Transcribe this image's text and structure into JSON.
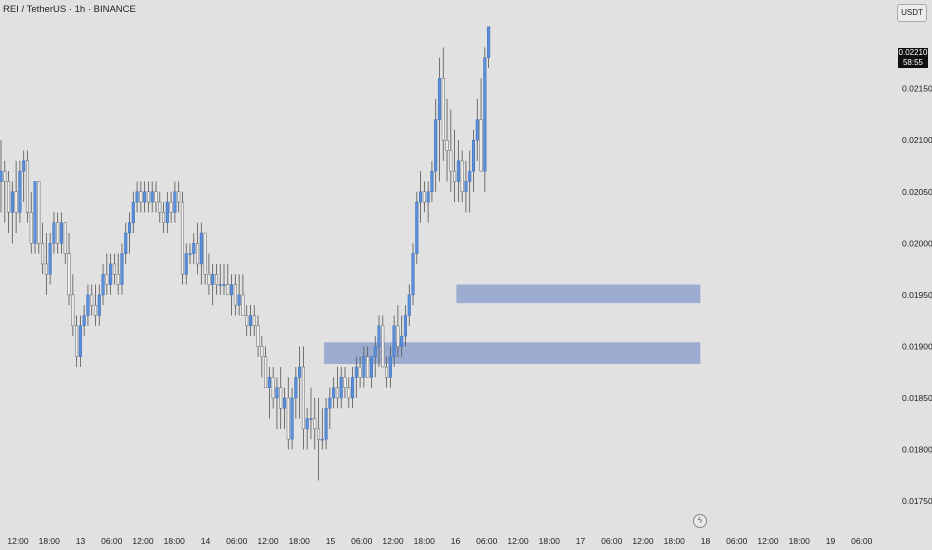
{
  "header": {
    "symbol_title": "REI / TetherUS · 1h · BINANCE",
    "currency_button": "USDT"
  },
  "price_tag": {
    "price": "0.02210",
    "countdown": "58:55"
  },
  "colors": {
    "background": "#e1e1e1",
    "up": "#5b8ed8",
    "down": "#ececec",
    "zone": "#8fa1cc",
    "text": "#222222"
  },
  "icons": {
    "alert": "lightning-icon"
  },
  "chart_data": {
    "type": "candlestick",
    "title": "REI / TetherUS · 1h · BINANCE",
    "y_ticks": [
      "0.02150",
      "0.02100",
      "0.02050",
      "0.02000",
      "0.01950",
      "0.01900",
      "0.01850",
      "0.01800",
      "0.01750"
    ],
    "x_ticks": [
      "12:00",
      "18:00",
      "13",
      "06:00",
      "12:00",
      "18:00",
      "14",
      "06:00",
      "12:00",
      "18:00",
      "15",
      "06:00",
      "12:00",
      "18:00",
      "16",
      "06:00",
      "12:00",
      "18:00",
      "17",
      "06:00",
      "12:00",
      "18:00",
      "18",
      "06:00",
      "12:00",
      "18:00",
      "19",
      "06:00"
    ],
    "ylim": [
      0.0172,
      0.02236
    ],
    "candles_ohlc": [
      [
        0.0206,
        0.021,
        0.0203,
        0.0207
      ],
      [
        0.0207,
        0.0208,
        0.0202,
        0.0206
      ],
      [
        0.0206,
        0.0207,
        0.0201,
        0.0203
      ],
      [
        0.0203,
        0.0206,
        0.02,
        0.0205
      ],
      [
        0.0205,
        0.0208,
        0.0201,
        0.0203
      ],
      [
        0.0203,
        0.0208,
        0.0202,
        0.0207
      ],
      [
        0.0207,
        0.0209,
        0.0204,
        0.0208
      ],
      [
        0.0208,
        0.0209,
        0.0202,
        0.0203
      ],
      [
        0.0203,
        0.0205,
        0.0199,
        0.02
      ],
      [
        0.02,
        0.0206,
        0.0199,
        0.0206
      ],
      [
        0.0206,
        0.0206,
        0.0199,
        0.02
      ],
      [
        0.02,
        0.0202,
        0.0197,
        0.0198
      ],
      [
        0.0198,
        0.0201,
        0.0195,
        0.0197
      ],
      [
        0.0197,
        0.0201,
        0.0196,
        0.02
      ],
      [
        0.02,
        0.0203,
        0.0199,
        0.0202
      ],
      [
        0.0202,
        0.0203,
        0.0199,
        0.02
      ],
      [
        0.02,
        0.0203,
        0.0199,
        0.0202
      ],
      [
        0.0202,
        0.0202,
        0.0198,
        0.0199
      ],
      [
        0.0199,
        0.0201,
        0.0194,
        0.0195
      ],
      [
        0.0195,
        0.0197,
        0.0191,
        0.0192
      ],
      [
        0.0192,
        0.0193,
        0.0188,
        0.0189
      ],
      [
        0.0189,
        0.0193,
        0.0188,
        0.0192
      ],
      [
        0.0192,
        0.0194,
        0.0191,
        0.0193
      ],
      [
        0.0193,
        0.0196,
        0.0192,
        0.0195
      ],
      [
        0.0195,
        0.0196,
        0.0193,
        0.0194
      ],
      [
        0.0194,
        0.0196,
        0.0192,
        0.0193
      ],
      [
        0.0193,
        0.0196,
        0.0192,
        0.0195
      ],
      [
        0.0195,
        0.0198,
        0.0194,
        0.0197
      ],
      [
        0.0197,
        0.0199,
        0.0195,
        0.0196
      ],
      [
        0.0196,
        0.0199,
        0.0195,
        0.0198
      ],
      [
        0.0198,
        0.0199,
        0.0196,
        0.0197
      ],
      [
        0.0197,
        0.0199,
        0.0195,
        0.0196
      ],
      [
        0.0196,
        0.02,
        0.0195,
        0.0199
      ],
      [
        0.0199,
        0.0202,
        0.0198,
        0.0201
      ],
      [
        0.0201,
        0.0203,
        0.0199,
        0.0202
      ],
      [
        0.0202,
        0.0205,
        0.0201,
        0.0204
      ],
      [
        0.0204,
        0.0206,
        0.0203,
        0.0205
      ],
      [
        0.0205,
        0.0206,
        0.0203,
        0.0204
      ],
      [
        0.0204,
        0.0206,
        0.0203,
        0.0205
      ],
      [
        0.0205,
        0.0206,
        0.0203,
        0.0204
      ],
      [
        0.0204,
        0.0206,
        0.0203,
        0.0205
      ],
      [
        0.0205,
        0.0206,
        0.0203,
        0.0204
      ],
      [
        0.0204,
        0.0205,
        0.0202,
        0.0203
      ],
      [
        0.0203,
        0.0204,
        0.0201,
        0.0202
      ],
      [
        0.0202,
        0.0205,
        0.0201,
        0.0204
      ],
      [
        0.0204,
        0.0205,
        0.0202,
        0.0203
      ],
      [
        0.0203,
        0.0206,
        0.0202,
        0.0205
      ],
      [
        0.0205,
        0.0206,
        0.0203,
        0.0204
      ],
      [
        0.0204,
        0.0205,
        0.0196,
        0.0197
      ],
      [
        0.0197,
        0.02,
        0.0196,
        0.0199
      ],
      [
        0.0199,
        0.02,
        0.0198,
        0.0199
      ],
      [
        0.0199,
        0.0201,
        0.0198,
        0.02
      ],
      [
        0.02,
        0.0202,
        0.0197,
        0.0198
      ],
      [
        0.0198,
        0.0202,
        0.0196,
        0.0201
      ],
      [
        0.0201,
        0.0201,
        0.0196,
        0.0197
      ],
      [
        0.0197,
        0.0199,
        0.0195,
        0.0196
      ],
      [
        0.0196,
        0.0198,
        0.0194,
        0.0197
      ],
      [
        0.0197,
        0.0198,
        0.0195,
        0.0196
      ],
      [
        0.0196,
        0.0198,
        0.0195,
        0.0196
      ],
      [
        0.0196,
        0.0198,
        0.0195,
        0.0196
      ],
      [
        0.0196,
        0.0198,
        0.0195,
        0.0195
      ],
      [
        0.0195,
        0.0197,
        0.0193,
        0.0196
      ],
      [
        0.0196,
        0.0197,
        0.0193,
        0.0194
      ],
      [
        0.0194,
        0.0197,
        0.0193,
        0.0195
      ],
      [
        0.0195,
        0.0197,
        0.0193,
        0.0193
      ],
      [
        0.0193,
        0.0194,
        0.0191,
        0.0192
      ],
      [
        0.0192,
        0.0194,
        0.0191,
        0.0193
      ],
      [
        0.0193,
        0.0194,
        0.0191,
        0.0192
      ],
      [
        0.0192,
        0.0193,
        0.0189,
        0.019
      ],
      [
        0.019,
        0.0191,
        0.0187,
        0.0189
      ],
      [
        0.0189,
        0.019,
        0.0186,
        0.0186
      ],
      [
        0.0186,
        0.0188,
        0.0183,
        0.0187
      ],
      [
        0.0187,
        0.0188,
        0.0184,
        0.0185
      ],
      [
        0.0185,
        0.0187,
        0.0182,
        0.0186
      ],
      [
        0.0186,
        0.0188,
        0.0182,
        0.0184
      ],
      [
        0.0184,
        0.0186,
        0.0182,
        0.0185
      ],
      [
        0.0185,
        0.0187,
        0.018,
        0.0181
      ],
      [
        0.0181,
        0.0186,
        0.018,
        0.0185
      ],
      [
        0.0185,
        0.0188,
        0.0183,
        0.0187
      ],
      [
        0.0187,
        0.019,
        0.0183,
        0.0188
      ],
      [
        0.0188,
        0.019,
        0.018,
        0.0182
      ],
      [
        0.0182,
        0.0184,
        0.018,
        0.0183
      ],
      [
        0.0183,
        0.0186,
        0.0181,
        0.0183
      ],
      [
        0.0183,
        0.0185,
        0.018,
        0.0182
      ],
      [
        0.0182,
        0.0185,
        0.0177,
        0.0181
      ],
      [
        0.0181,
        0.0184,
        0.018,
        0.0181
      ],
      [
        0.0181,
        0.0185,
        0.018,
        0.0184
      ],
      [
        0.0184,
        0.0186,
        0.0182,
        0.0185
      ],
      [
        0.0185,
        0.0187,
        0.0184,
        0.0186
      ],
      [
        0.0186,
        0.0188,
        0.0184,
        0.0185
      ],
      [
        0.0185,
        0.0188,
        0.0184,
        0.0187
      ],
      [
        0.0187,
        0.0188,
        0.0185,
        0.0186
      ],
      [
        0.0186,
        0.0187,
        0.0184,
        0.0185
      ],
      [
        0.0185,
        0.0188,
        0.0184,
        0.0187
      ],
      [
        0.0187,
        0.0189,
        0.0185,
        0.0188
      ],
      [
        0.0188,
        0.0189,
        0.0186,
        0.0187
      ],
      [
        0.0187,
        0.019,
        0.0186,
        0.0189
      ],
      [
        0.0189,
        0.019,
        0.0187,
        0.0187
      ],
      [
        0.0187,
        0.0189,
        0.0186,
        0.0189
      ],
      [
        0.0189,
        0.0191,
        0.0187,
        0.019
      ],
      [
        0.019,
        0.0193,
        0.0188,
        0.0192
      ],
      [
        0.0192,
        0.0193,
        0.0189,
        0.0188
      ],
      [
        0.0188,
        0.0189,
        0.0186,
        0.0187
      ],
      [
        0.0187,
        0.019,
        0.0186,
        0.0189
      ],
      [
        0.0189,
        0.0193,
        0.0188,
        0.0192
      ],
      [
        0.0192,
        0.0194,
        0.0189,
        0.019
      ],
      [
        0.019,
        0.0193,
        0.0189,
        0.0191
      ],
      [
        0.0191,
        0.0194,
        0.019,
        0.0193
      ],
      [
        0.0193,
        0.0196,
        0.0192,
        0.0195
      ],
      [
        0.0195,
        0.02,
        0.0194,
        0.0199
      ],
      [
        0.0199,
        0.0205,
        0.0198,
        0.0204
      ],
      [
        0.0204,
        0.0207,
        0.0202,
        0.0205
      ],
      [
        0.0205,
        0.0206,
        0.0203,
        0.0204
      ],
      [
        0.0204,
        0.0206,
        0.0202,
        0.0205
      ],
      [
        0.0205,
        0.0208,
        0.0204,
        0.0207
      ],
      [
        0.0207,
        0.0214,
        0.0205,
        0.0212
      ],
      [
        0.0212,
        0.0218,
        0.0206,
        0.0216
      ],
      [
        0.0216,
        0.0219,
        0.0208,
        0.021
      ],
      [
        0.021,
        0.0214,
        0.0206,
        0.0209
      ],
      [
        0.0209,
        0.0213,
        0.0205,
        0.0207
      ],
      [
        0.0207,
        0.0211,
        0.0204,
        0.0206
      ],
      [
        0.0206,
        0.021,
        0.0204,
        0.0208
      ],
      [
        0.0208,
        0.0209,
        0.0204,
        0.0205
      ],
      [
        0.0205,
        0.0208,
        0.0203,
        0.0206
      ],
      [
        0.0206,
        0.0209,
        0.0203,
        0.0207
      ],
      [
        0.0207,
        0.0211,
        0.0205,
        0.021
      ],
      [
        0.021,
        0.0214,
        0.0208,
        0.0212
      ],
      [
        0.0212,
        0.0216,
        0.0209,
        0.0207
      ],
      [
        0.0207,
        0.0219,
        0.0205,
        0.0218
      ],
      [
        0.0218,
        0.0221,
        0.0217,
        0.0221
      ]
    ],
    "zones": [
      {
        "price_low": 0.01942,
        "price_high": 0.0196,
        "start_index": 121,
        "end_index": 185
      },
      {
        "price_low": 0.01883,
        "price_high": 0.01904,
        "start_index": 86,
        "end_index": 185
      }
    ],
    "last_price": 0.0221,
    "grid": false
  }
}
